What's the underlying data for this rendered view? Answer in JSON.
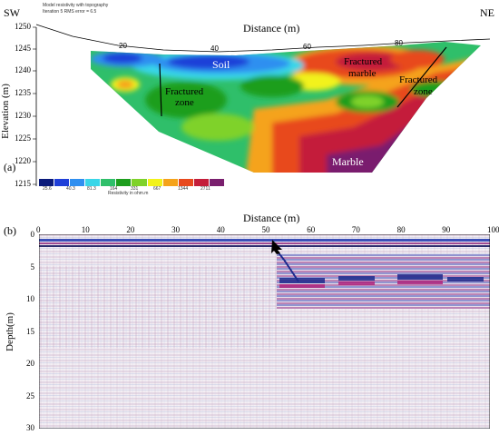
{
  "panel_a": {
    "label": "(a)",
    "corner_left": "SW",
    "corner_right": "NE",
    "header_line1": "Model resistivity with topography",
    "header_line2": "Iteration 5 RMS error = 6.5",
    "axis_title_x": "Distance (m)",
    "axis_title_y": "Elevation (m)",
    "x_ticks": [
      "20",
      "40",
      "60",
      "80"
    ],
    "y_ticks": [
      "1250",
      "1245",
      "1240",
      "1235",
      "1230",
      "1225",
      "1220",
      "1215"
    ],
    "annotations": {
      "soil": "Soil",
      "fractured_zone_left_1": "Fractured",
      "fractured_zone_left_2": "zone",
      "fractured_marble_1": "Fractured",
      "fractured_marble_2": "marble",
      "fractured_zone_right_1": "Fractured",
      "fractured_zone_right_2": "zone",
      "marble": "Marble"
    },
    "colorbar": {
      "caption": "Resistivity in ohm.m",
      "colors": [
        "#0a1a7a",
        "#1f3fd8",
        "#2f8ff0",
        "#39d6e8",
        "#2fbf6a",
        "#1e9e1e",
        "#7fd22a",
        "#f2f21a",
        "#f5a31a",
        "#e8491d",
        "#c41e3a",
        "#7a1f6e"
      ],
      "labels": [
        "25.6",
        "40.3",
        "81.3",
        "164",
        "331",
        "667",
        "1344",
        "2711"
      ]
    }
  },
  "panel_b": {
    "label": "(b)",
    "axis_title_x": "Distance (m)",
    "axis_title_y": "Depth(m)",
    "x_ticks": [
      "0",
      "10",
      "20",
      "30",
      "40",
      "50",
      "60",
      "70",
      "80",
      "90",
      "100"
    ],
    "y_ticks": [
      "0",
      "5",
      "10",
      "15",
      "20",
      "25",
      "30"
    ]
  }
}
